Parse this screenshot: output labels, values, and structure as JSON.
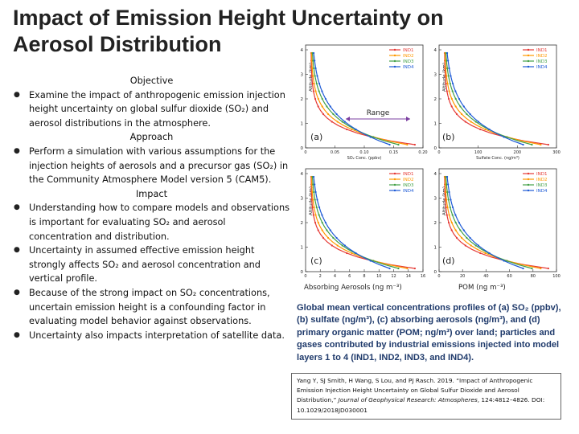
{
  "title": {
    "line1": "Impact of Emission Height Uncertainty on",
    "line2": "Aerosol Distribution"
  },
  "sections": {
    "objective": {
      "heading": "Objective",
      "bullets": [
        "Examine the impact of anthropogenic emission injection height uncertainty on global sulfur dioxide (SO₂) and aerosol distributions in the atmosphere."
      ]
    },
    "approach": {
      "heading": "Approach",
      "bullets": [
        "Perform a simulation with various assumptions for the injection heights of aerosols and a precursor gas (SO₂) in the Community Atmosphere Model version 5 (CAM5)."
      ]
    },
    "impact": {
      "heading": "Impact",
      "bullets": [
        "Understanding how to compare models and observations is important for evaluating SO₂ and aerosol concentration and distribution.",
        "Uncertainty in assumed effective emission height strongly affects SO₂ and aerosol concentration and vertical profile.",
        "Because of the strong impact on SO₂ concentrations, uncertain emission height is a confounding factor in evaluating model behavior against observations.",
        "Uncertainty also impacts interpretation of satellite data."
      ]
    }
  },
  "figure": {
    "panels": [
      {
        "label": "(a)",
        "ylabel": "Altitude (km)",
        "xlabel": "SO₂ Conc. (ppbv)",
        "xticks": [
          "0",
          "0.05",
          "0.10",
          "0.15",
          "0.20"
        ],
        "yticks": [
          "0",
          "1",
          "2",
          "3",
          "4"
        ],
        "annotation": "Range"
      },
      {
        "label": "(b)",
        "ylabel": "Altitude (km)",
        "xlabel": "Sulfate Conc. (ng/m³)",
        "xticks": [
          "0",
          "100",
          "200",
          "300"
        ],
        "yticks": [
          "0",
          "1",
          "2",
          "3",
          "4"
        ]
      },
      {
        "label": "(c)",
        "ylabel": "Altitude (km)",
        "xlabel": "",
        "xticks": [
          "0",
          "2",
          "4",
          "6",
          "8",
          "10",
          "12",
          "14",
          "16"
        ],
        "yticks": [
          "0",
          "1",
          "2",
          "3",
          "4"
        ]
      },
      {
        "label": "(d)",
        "ylabel": "Altitude (km)",
        "xlabel": "",
        "xticks": [
          "0",
          "20",
          "40",
          "60",
          "80",
          "100"
        ],
        "yticks": [
          "0",
          "1",
          "2",
          "3",
          "4"
        ]
      }
    ],
    "legend": [
      "IND1",
      "IND2",
      "IND3",
      "IND4"
    ],
    "series_colors": [
      "#e53935",
      "#ff9800",
      "#43a047",
      "#1e5bd6"
    ],
    "xlabel_c": "Absorbing Aerosols (ng m⁻³)",
    "xlabel_d": "POM (ng m⁻³)"
  },
  "caption": "Global mean vertical concentrations profiles of (a) SO₂ (ppbv), (b) sulfate (ng/m³), (c) absorbing aerosols (ng/m³), and (d) primary organic matter (POM; ng/m³) over land; particles and gases contributed by industrial emissions injected into model layers 1 to 4 (IND1, IND2, IND3, and IND4).",
  "citation": {
    "text_pre": "Yang Y, SJ Smith, H Wang, S Lou, and PJ Rasch. 2019. “Impact of Anthropogenic Emission Injection Height Uncertainty on Global Sulfur Dioxide and Aerosol Distribution,” ",
    "journal": "Journal of Geophysical Research: Atmospheres",
    "text_post": ", 124:4812–4826. DOI: 10.1029/2018JD030001"
  }
}
